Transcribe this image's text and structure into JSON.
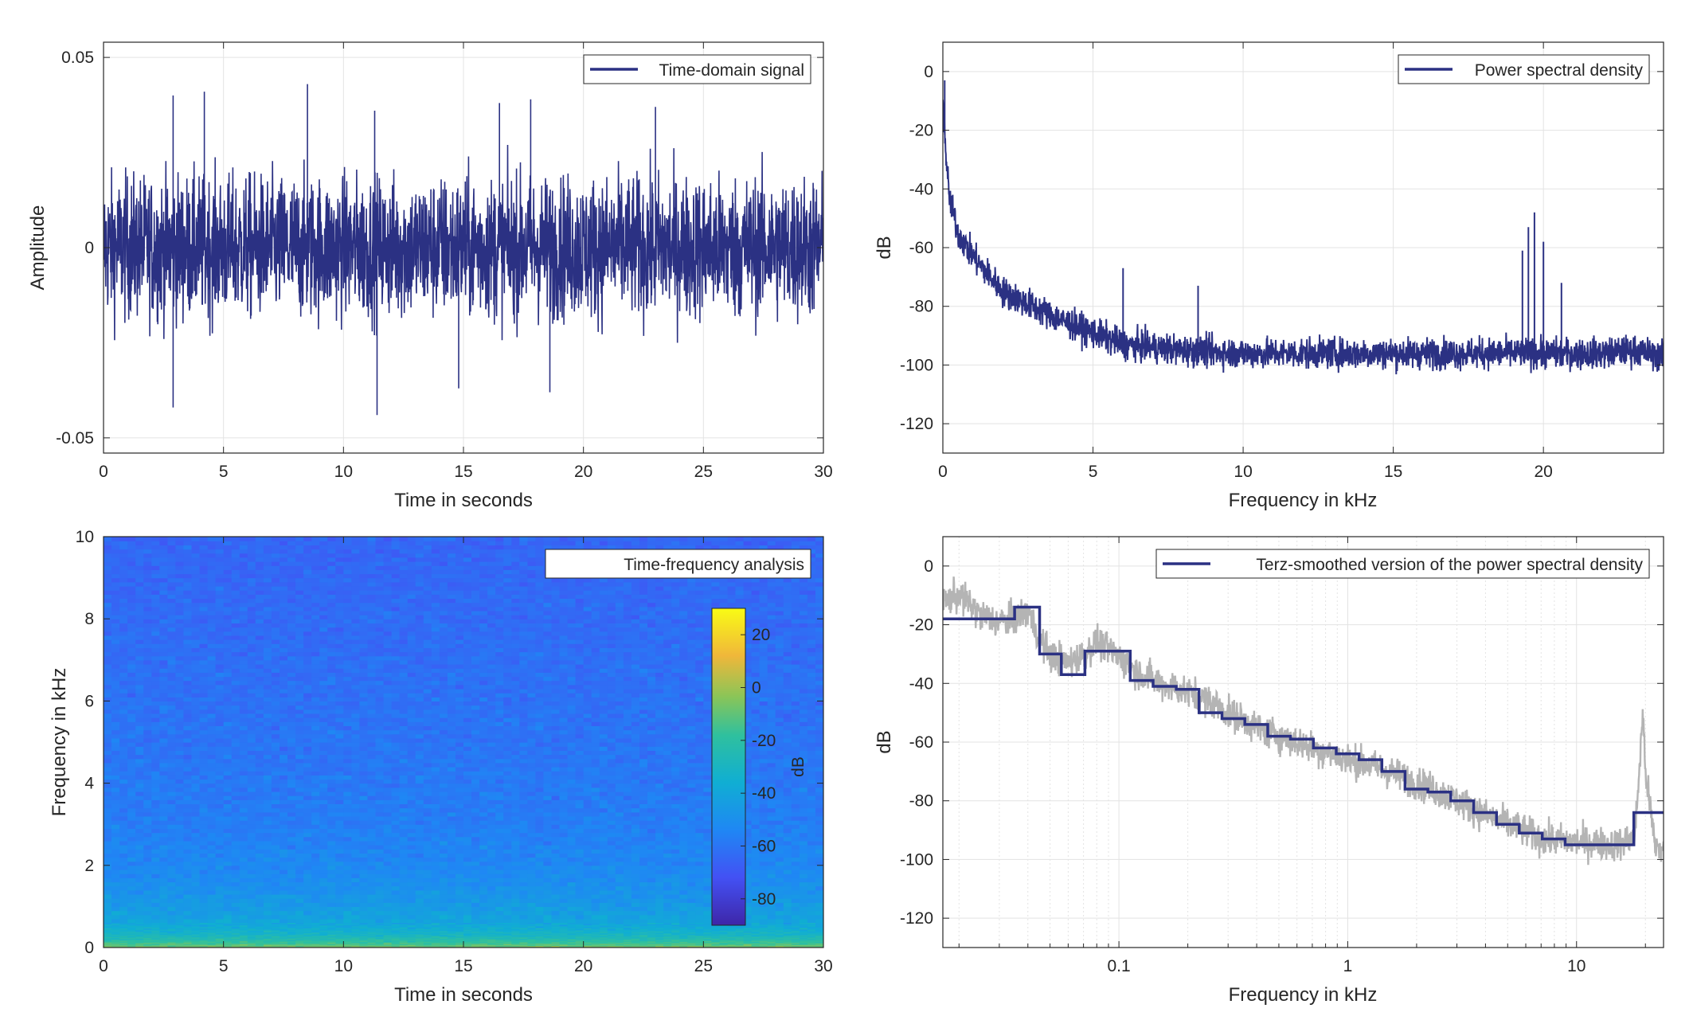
{
  "colors": {
    "series": "#2b3183",
    "raw": "#b4b4b4",
    "grid": "#e3e3e3",
    "axis": "#262626",
    "background": "#ffffff"
  },
  "chart_data": [
    {
      "type": "line",
      "legend": [
        "Time-domain signal"
      ],
      "legend_location": "top-right",
      "xlabel": "Time in seconds",
      "ylabel": "Amplitude",
      "xlim": [
        0,
        30
      ],
      "ylim": [
        -0.054,
        0.054
      ],
      "xticks": [
        0,
        5,
        10,
        15,
        20,
        25,
        30
      ],
      "yticks": [
        -0.05,
        0,
        0.05
      ],
      "xtick_labels": [
        "0",
        "5",
        "10",
        "15",
        "20",
        "25",
        "30"
      ],
      "ytick_labels": [
        "-0.05",
        "0",
        "0.05"
      ],
      "grid": true,
      "series": [
        {
          "name": "Time-domain signal",
          "description_values": "dense noise-like signal centred at 0, typical envelope about +/-0.02",
          "envelope_max": 0.022,
          "envelope_min": -0.022,
          "peaks": [
            {
              "x": 2.9,
              "y": 0.04
            },
            {
              "x": 4.2,
              "y": 0.041
            },
            {
              "x": 8.5,
              "y": 0.043
            },
            {
              "x": 11.3,
              "y": 0.036
            },
            {
              "x": 16.5,
              "y": 0.038
            },
            {
              "x": 17.8,
              "y": 0.039
            },
            {
              "x": 23.0,
              "y": 0.037
            },
            {
              "x": 2.9,
              "y": -0.042
            },
            {
              "x": 11.4,
              "y": -0.044
            },
            {
              "x": 14.8,
              "y": -0.037
            },
            {
              "x": 18.6,
              "y": -0.038
            }
          ]
        }
      ]
    },
    {
      "type": "line",
      "legend": [
        "Power spectral density"
      ],
      "legend_location": "top-right",
      "xlabel": "Frequency in kHz",
      "ylabel": "dB",
      "xlim": [
        0,
        24
      ],
      "ylim": [
        -130,
        10
      ],
      "xticks": [
        0,
        5,
        10,
        15,
        20
      ],
      "yticks": [
        -120,
        -100,
        -80,
        -60,
        -40,
        -20,
        0
      ],
      "xtick_labels": [
        "0",
        "5",
        "10",
        "15",
        "20"
      ],
      "ytick_labels": [
        "-120",
        "-100",
        "-80",
        "-60",
        "-40",
        "-20",
        "0"
      ],
      "grid": true,
      "series": [
        {
          "name": "Power spectral density",
          "x": [
            0,
            0.05,
            0.2,
            0.5,
            1,
            2,
            3,
            4,
            5,
            6,
            8,
            10,
            12,
            15,
            18,
            19,
            19.5,
            20,
            21,
            22,
            23,
            24
          ],
          "y": [
            -5,
            -20,
            -42,
            -55,
            -63,
            -75,
            -80,
            -85,
            -89,
            -93,
            -95,
            -96,
            -96,
            -96,
            -96,
            -96,
            -96,
            -96,
            -96,
            -96,
            -95,
            -97
          ],
          "peaks": [
            {
              "x": 0.06,
              "y": -3
            },
            {
              "x": 6.0,
              "y": -67
            },
            {
              "x": 8.5,
              "y": -73
            },
            {
              "x": 19.3,
              "y": -61
            },
            {
              "x": 19.5,
              "y": -53
            },
            {
              "x": 19.7,
              "y": -48
            },
            {
              "x": 20.0,
              "y": -58
            },
            {
              "x": 20.6,
              "y": -72
            }
          ]
        }
      ]
    },
    {
      "type": "heatmap",
      "legend": [
        "Time-frequency analysis"
      ],
      "legend_location": "top-right",
      "xlabel": "Time in seconds",
      "ylabel": "Frequency in kHz",
      "xlim": [
        0,
        30
      ],
      "ylim": [
        0,
        10
      ],
      "xticks": [
        0,
        5,
        10,
        15,
        20,
        25,
        30
      ],
      "yticks": [
        0,
        2,
        4,
        6,
        8,
        10
      ],
      "xtick_labels": [
        "0",
        "5",
        "10",
        "15",
        "20",
        "25",
        "30"
      ],
      "ytick_labels": [
        "0",
        "2",
        "4",
        "6",
        "8",
        "10"
      ],
      "colorbar": {
        "label": "dB",
        "range": [
          -90,
          30
        ],
        "ticks": [
          -80,
          -60,
          -40,
          -20,
          0,
          20
        ],
        "tick_labels": [
          "-80",
          "-60",
          "-40",
          "-20",
          "0",
          "20"
        ],
        "colormap": "parula"
      },
      "level_profile": {
        "freq_khz": [
          0,
          0.1,
          0.3,
          0.6,
          1.0,
          1.5,
          2.0,
          3.0,
          5.0,
          8.0,
          10.0
        ],
        "db": [
          -5,
          -15,
          -30,
          -40,
          -45,
          -50,
          -53,
          -57,
          -60,
          -63,
          -65
        ]
      }
    },
    {
      "type": "line",
      "legend": [
        "Terz-smoothed version of the power spectral density"
      ],
      "legend_location": "top-right",
      "xlabel": "Frequency in kHz",
      "ylabel": "dB",
      "xscale": "log",
      "xlim": [
        0.017,
        24
      ],
      "ylim": [
        -130,
        10
      ],
      "xticks": [
        0.1,
        1,
        10
      ],
      "xtick_labels": [
        "0.1",
        "1",
        "10"
      ],
      "yticks": [
        -120,
        -100,
        -80,
        -60,
        -40,
        -20,
        0
      ],
      "ytick_labels": [
        "-120",
        "-100",
        "-80",
        "-60",
        "-40",
        "-20",
        "0"
      ],
      "grid": true,
      "series": [
        {
          "name": "Terz-smoothed version of the power spectral density",
          "step_edges": [
            0.017,
            0.035,
            0.045,
            0.056,
            0.071,
            0.112,
            0.141,
            0.178,
            0.224,
            0.282,
            0.355,
            0.447,
            0.562,
            0.708,
            0.891,
            1.12,
            1.41,
            1.78,
            2.24,
            2.82,
            3.55,
            4.47,
            5.62,
            7.08,
            8.91,
            11.2,
            17.8,
            24
          ],
          "step_values": [
            -18,
            -14,
            -30,
            -37,
            -29,
            -39,
            -41,
            -42,
            -50,
            -52,
            -54,
            -58,
            -59,
            -62,
            -64,
            -66,
            -70,
            -76,
            -77,
            -80,
            -84,
            -88,
            -91,
            -93,
            -95,
            -95,
            -84
          ]
        },
        {
          "name": "",
          "role": "raw spectrum (grey)",
          "x": [
            0.017,
            0.02,
            0.025,
            0.03,
            0.035,
            0.04,
            0.045,
            0.05,
            0.06,
            0.07,
            0.08,
            0.1,
            0.12,
            0.15,
            0.2,
            0.25,
            0.3,
            0.4,
            0.5,
            0.7,
            1,
            1.5,
            2,
            3,
            4,
            5,
            7,
            10,
            15,
            18,
            19.5,
            20,
            22,
            24
          ],
          "y": [
            -12,
            -10,
            -17,
            -19,
            -18,
            -15,
            -25,
            -30,
            -33,
            -30,
            -26,
            -31,
            -36,
            -40,
            -43,
            -46,
            -50,
            -55,
            -58,
            -62,
            -66,
            -70,
            -74,
            -80,
            -85,
            -88,
            -93,
            -94,
            -95,
            -92,
            -50,
            -70,
            -95,
            -97
          ]
        }
      ]
    }
  ]
}
